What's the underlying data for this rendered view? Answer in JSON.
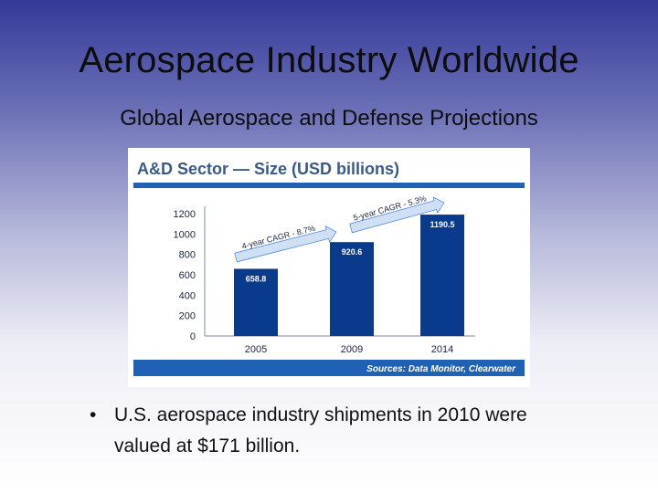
{
  "slide": {
    "title": "Aerospace Industry Worldwide",
    "subtitle": "Global Aerospace and Defense Projections",
    "bullet": {
      "marker": "•",
      "line1": "U.S. aerospace industry shipments in 2010 were",
      "line2": "valued at $171 billion."
    }
  },
  "colors": {
    "bar": "#0a3a8c",
    "header_rule": "#1f62b5",
    "footer_band": "#1f62b5",
    "title_text": "#3a5a8c",
    "arrow_band": "#2a6ed1"
  },
  "chart_data": {
    "type": "bar",
    "title": "A&D Sector — Size (USD billions)",
    "categories": [
      "2005",
      "2009",
      "2014"
    ],
    "values": [
      658.8,
      920.6,
      1190.5
    ],
    "value_labels": [
      "658.8",
      "920.6",
      "1190.5"
    ],
    "yticks": [
      "0",
      "200",
      "400",
      "600",
      "800",
      "1000",
      "1200"
    ],
    "ylim": [
      0,
      1200
    ],
    "grid": false,
    "legend": "none",
    "annotations": [
      "4-year CAGR - 8.7%",
      "5-year CAGR - 5.3%"
    ],
    "source": "Sources: Data Monitor, Clearwater"
  }
}
